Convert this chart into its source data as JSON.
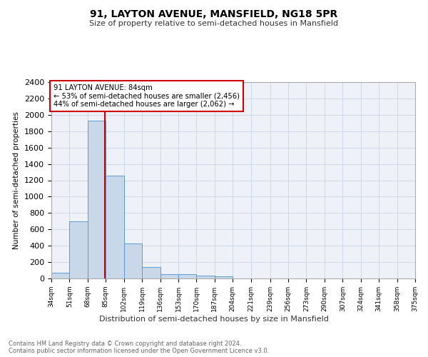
{
  "title": "91, LAYTON AVENUE, MANSFIELD, NG18 5PR",
  "subtitle": "Size of property relative to semi-detached houses in Mansfield",
  "xlabel": "Distribution of semi-detached houses by size in Mansfield",
  "ylabel": "Number of semi-detached properties",
  "footnote1": "Contains HM Land Registry data © Crown copyright and database right 2024.",
  "footnote2": "Contains public sector information licensed under the Open Government Licence v3.0.",
  "annotation_title": "91 LAYTON AVENUE: 84sqm",
  "annotation_line2": "← 53% of semi-detached houses are smaller (2,456)",
  "annotation_line3": "44% of semi-detached houses are larger (2,062) →",
  "property_size": 84,
  "bar_edges": [
    34,
    51,
    68,
    85,
    102,
    119,
    136,
    153,
    170,
    187,
    204,
    221,
    239,
    256,
    273,
    290,
    307,
    324,
    341,
    358,
    375
  ],
  "bar_heights": [
    70,
    700,
    1930,
    1255,
    430,
    140,
    55,
    50,
    35,
    25,
    0,
    0,
    0,
    0,
    0,
    0,
    0,
    0,
    0,
    0
  ],
  "bar_color": "#c8d8e8",
  "bar_edge_color": "#5b9bd5",
  "vline_color": "#cc0000",
  "vline_x": 84,
  "ylim": [
    0,
    2400
  ],
  "yticks": [
    0,
    200,
    400,
    600,
    800,
    1000,
    1200,
    1400,
    1600,
    1800,
    2000,
    2200,
    2400
  ],
  "tick_labels": [
    "34sqm",
    "51sqm",
    "68sqm",
    "85sqm",
    "102sqm",
    "119sqm",
    "136sqm",
    "153sqm",
    "170sqm",
    "187sqm",
    "204sqm",
    "221sqm",
    "239sqm",
    "256sqm",
    "273sqm",
    "290sqm",
    "307sqm",
    "324sqm",
    "341sqm",
    "358sqm",
    "375sqm"
  ],
  "annotation_box_color": "#ffffff",
  "annotation_box_edge": "#cc0000",
  "grid_color": "#d0d8e8",
  "bg_color": "#eef2f8"
}
